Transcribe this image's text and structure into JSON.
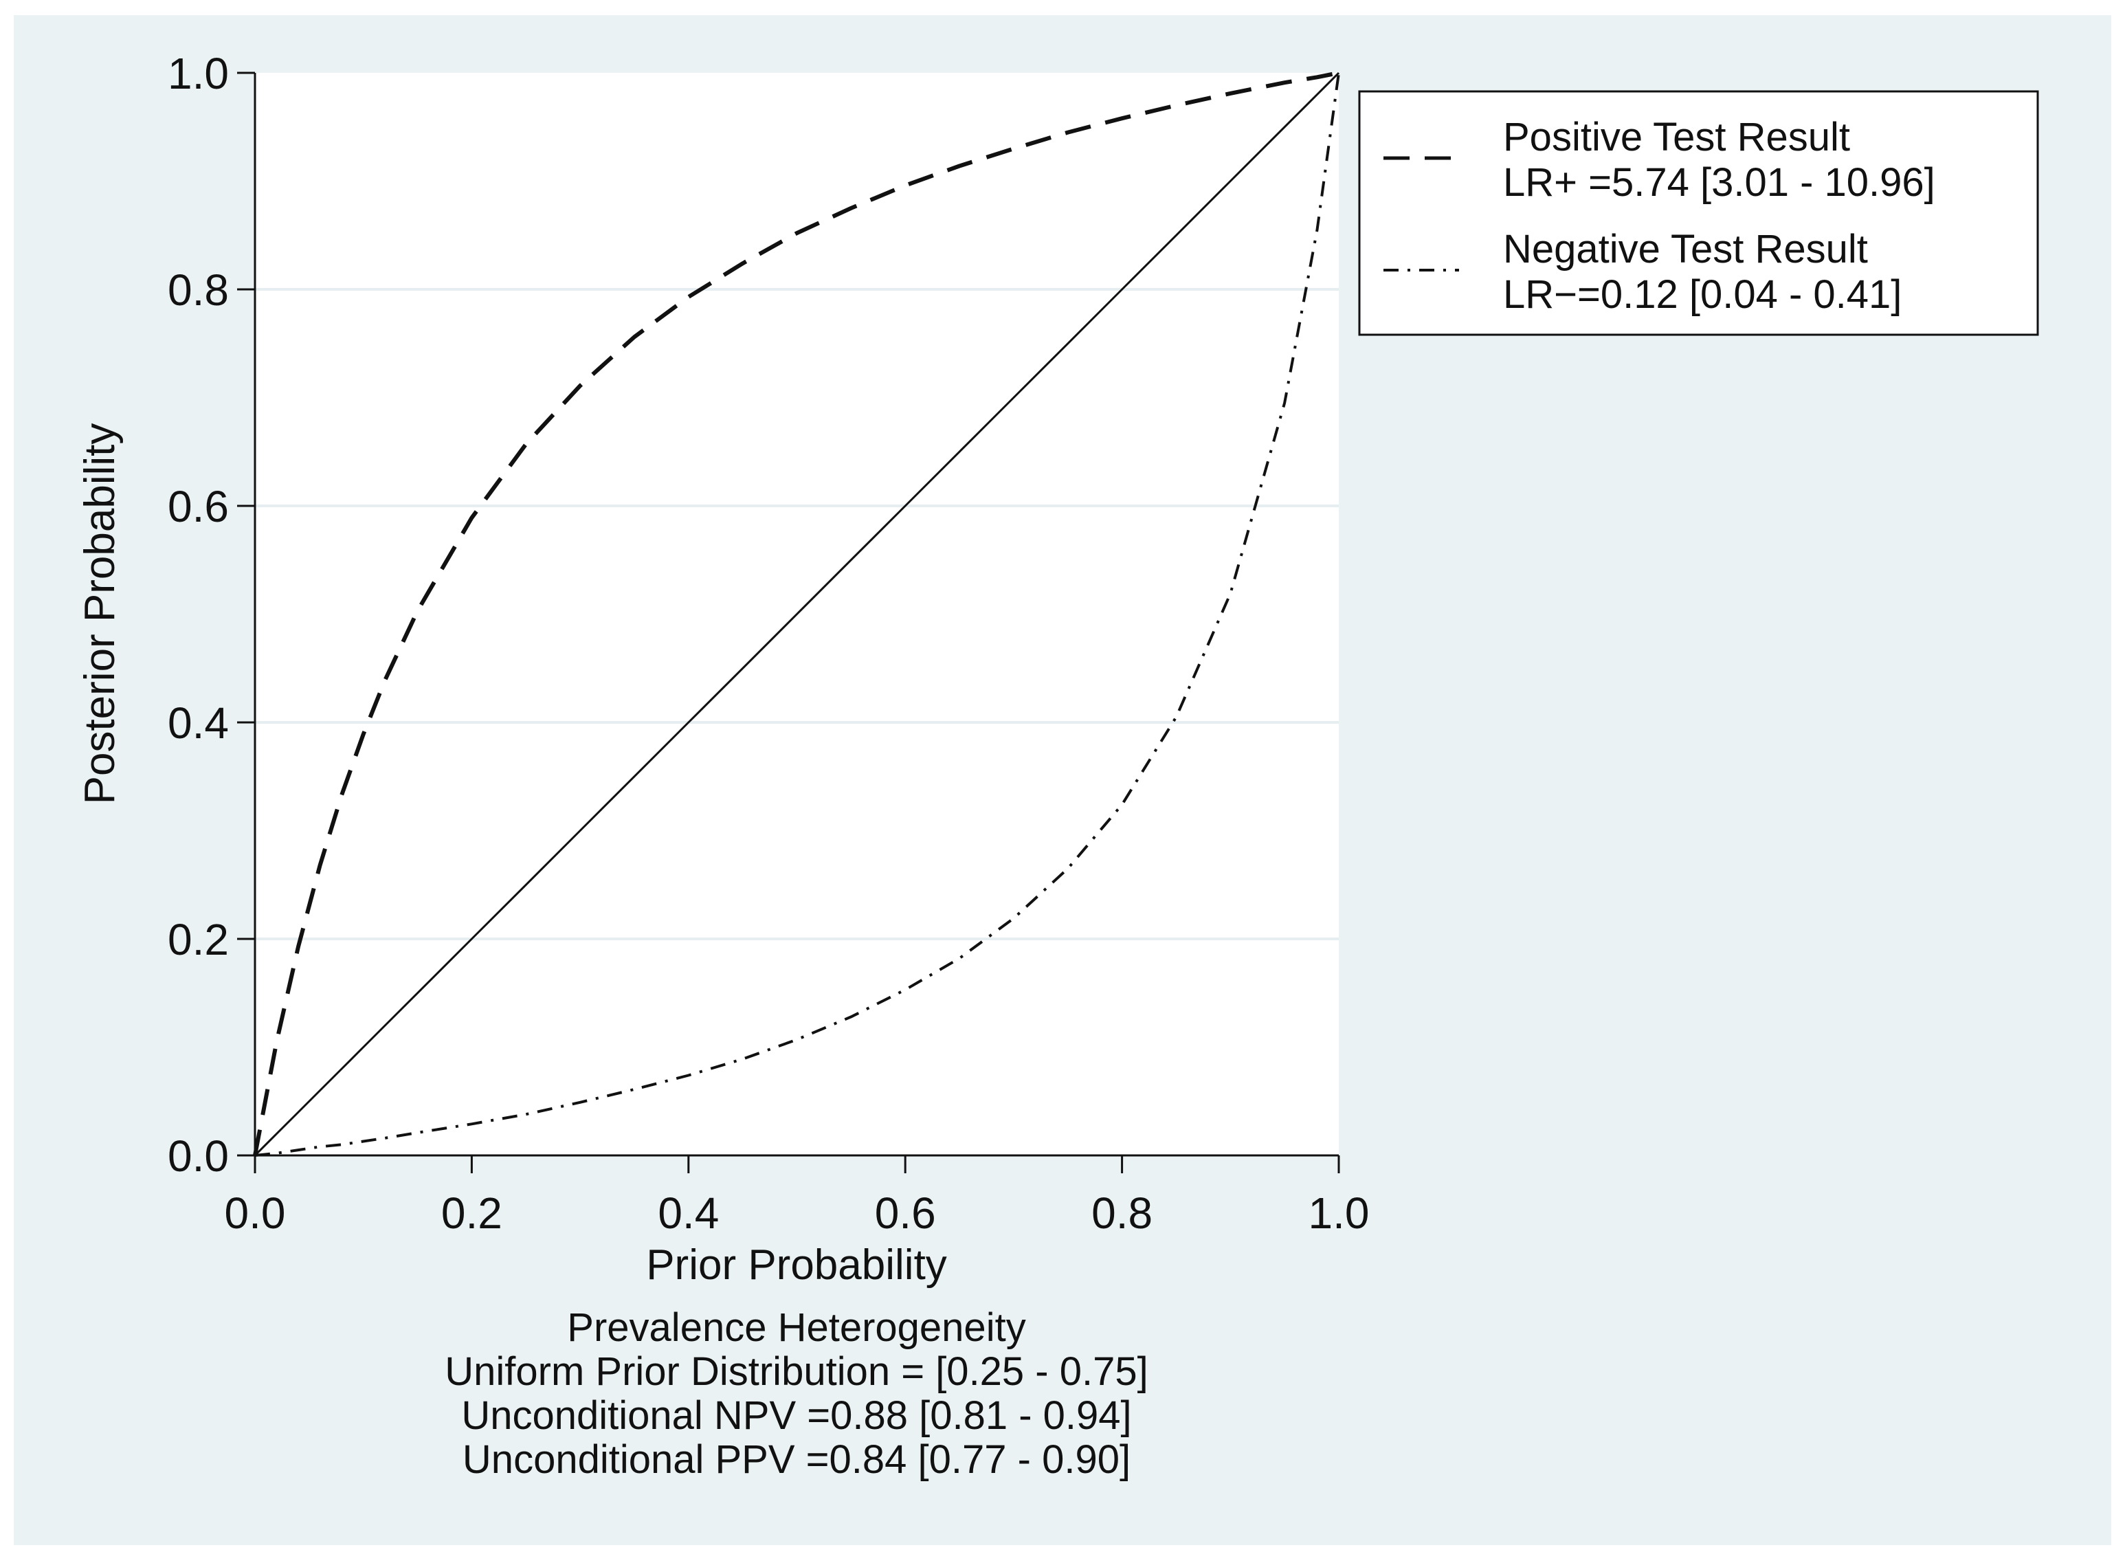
{
  "colors": {
    "page_background": "#ffffff",
    "outer_background": "#eaf2f3",
    "plot_background": "#ffffff",
    "gridline": "#e6eef1",
    "line": "#111111"
  },
  "chart_data": {
    "type": "line",
    "title": "",
    "xlabel": "Prior Probability",
    "ylabel": "Posterior Probability",
    "xlim": [
      0,
      1
    ],
    "ylim": [
      0,
      1
    ],
    "xticks": [
      "0.0",
      "0.2",
      "0.4",
      "0.6",
      "0.8",
      "1.0"
    ],
    "yticks": [
      "0.0",
      "0.2",
      "0.4",
      "0.6",
      "0.8",
      "1.0"
    ],
    "grid": "horizontal",
    "legend_position": "right",
    "x": [
      0,
      0.02,
      0.04,
      0.06,
      0.08,
      0.1,
      0.12,
      0.15,
      0.2,
      0.25,
      0.3,
      0.35,
      0.4,
      0.45,
      0.5,
      0.55,
      0.6,
      0.65,
      0.7,
      0.75,
      0.8,
      0.85,
      0.9,
      0.95,
      0.98,
      1
    ],
    "series": [
      {
        "name": "Positive Test Result",
        "legend_detail": "LR+ =5.74 [3.01 - 10.96]",
        "style": "dashed",
        "values": [
          0,
          0.105,
          0.193,
          0.268,
          0.333,
          0.389,
          0.439,
          0.503,
          0.589,
          0.657,
          0.711,
          0.756,
          0.793,
          0.824,
          0.852,
          0.875,
          0.896,
          0.914,
          0.93,
          0.945,
          0.958,
          0.97,
          0.981,
          0.991,
          0.996,
          1
        ]
      },
      {
        "name": "Negative Test Result",
        "legend_detail": "LR−=0.12 [0.04 - 0.41]",
        "style": "dash-dot",
        "values": [
          0,
          0.002,
          0.005,
          0.008,
          0.01,
          0.013,
          0.016,
          0.021,
          0.029,
          0.038,
          0.049,
          0.061,
          0.074,
          0.089,
          0.107,
          0.128,
          0.153,
          0.182,
          0.219,
          0.265,
          0.324,
          0.405,
          0.519,
          0.695,
          0.855,
          1
        ]
      },
      {
        "style": "solid",
        "values": [
          0,
          0.02,
          0.04,
          0.06,
          0.08,
          0.1,
          0.12,
          0.15,
          0.2,
          0.25,
          0.3,
          0.35,
          0.4,
          0.45,
          0.5,
          0.55,
          0.6,
          0.65,
          0.7,
          0.75,
          0.8,
          0.85,
          0.9,
          0.95,
          0.98,
          1
        ]
      }
    ],
    "notes": [
      "Prevalence Heterogeneity",
      "Uniform Prior Distribution = [0.25 - 0.75]",
      "Unconditional NPV =0.88 [0.81 - 0.94]",
      "Unconditional PPV =0.84 [0.77 - 0.90]"
    ]
  }
}
